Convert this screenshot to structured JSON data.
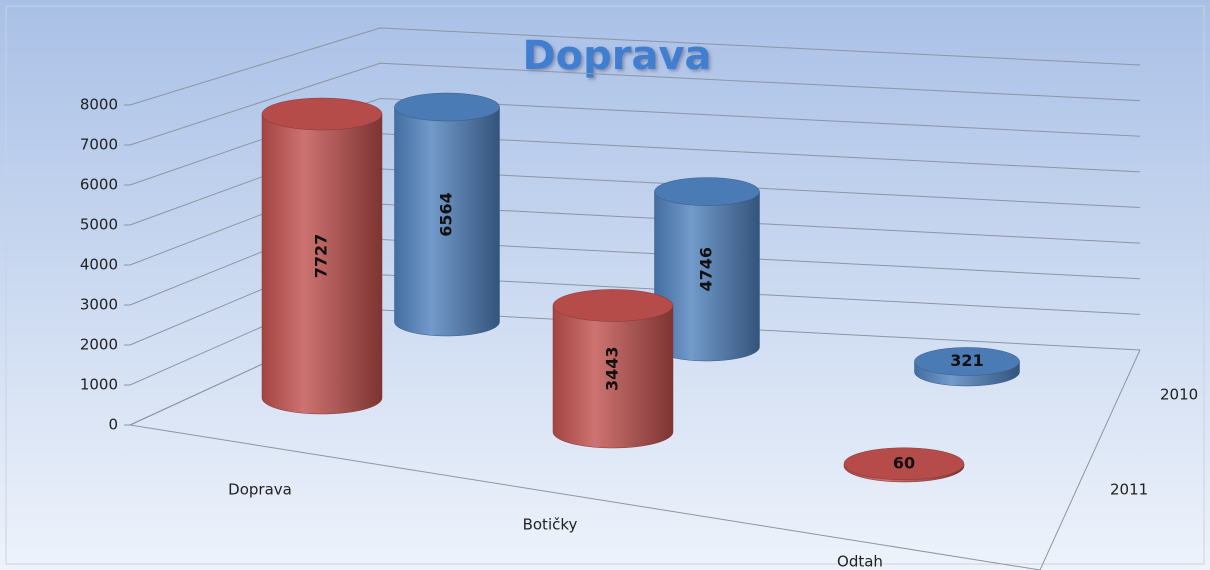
{
  "chart_data": {
    "type": "bar3d",
    "title": "Doprava",
    "categories": [
      "Doprava",
      "Botičky",
      "Odtah"
    ],
    "series": [
      {
        "name": "2010",
        "color": "#4f81bd",
        "values": [
          6564,
          4746,
          321
        ]
      },
      {
        "name": "2011",
        "color": "#c0504d",
        "values": [
          7727,
          3443,
          60
        ]
      }
    ],
    "ylim": [
      0,
      8000
    ],
    "yticks": [
      0,
      1000,
      2000,
      3000,
      4000,
      5000,
      6000,
      7000,
      8000
    ],
    "grid": true
  }
}
